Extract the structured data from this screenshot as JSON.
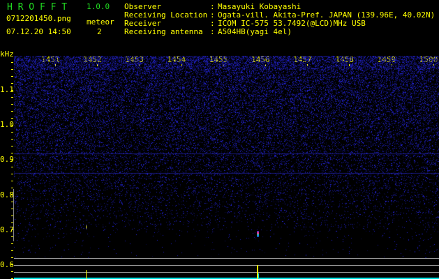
{
  "app": {
    "name": "H R O F F T",
    "version": "1.0.0"
  },
  "file": {
    "name": "0712201450.png",
    "datetime": "07.12.20 14:50"
  },
  "meteor": {
    "label": "meteor",
    "count": "2"
  },
  "info": [
    {
      "label": "Observer",
      "value": "Masayuki Kobayashi"
    },
    {
      "label": "Receiving Location",
      "value": "Ogata-vill. Akita-Pref. JAPAN (139.96E, 40.02N)"
    },
    {
      "label": "Receiver",
      "value": "ICOM IC-575 53.7492(@LCD)MHz USB"
    },
    {
      "label": "Receiving antenna",
      "value": "A504HB(yagi 4el)"
    }
  ],
  "axis": {
    "y_unit": "kHz",
    "y_ticks": [
      "1.1",
      "1.0",
      "0.9",
      "0.8",
      "0.7",
      "0.6"
    ],
    "x_ticks": [
      "1451",
      "1452",
      "1453",
      "1454",
      "1455",
      "1456",
      "1457",
      "1458",
      "1459",
      "1500"
    ]
  },
  "colors": {
    "text": "#ffff00",
    "title": "#22dd22",
    "noise": "#2020c0",
    "baseline": "#00e0e0"
  }
}
